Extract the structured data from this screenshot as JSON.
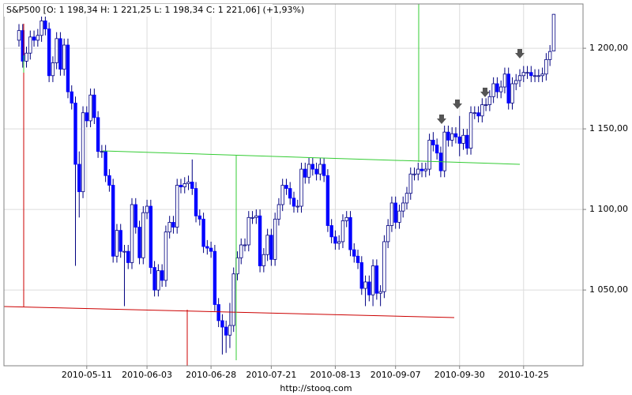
{
  "chart_data": {
    "type": "candlestick",
    "title": "S&P500 [O: 1 198,34  H: 1 221,25  L: 1 198,34  C: 1 221,06] (+1,93%)",
    "footer": "http://stooq.com",
    "up_color": "#ffffff",
    "down_color": "#0000ff",
    "outline_color": "#000080",
    "grid": true,
    "ylim": [
      1003,
      1227.5
    ],
    "yticks": [
      {
        "value": 1050,
        "label": "1 050,00"
      },
      {
        "value": 1100,
        "label": "1 100,00"
      },
      {
        "value": 1150,
        "label": "1 150,00"
      },
      {
        "value": 1200,
        "label": "1 200,00"
      }
    ],
    "categories": [
      null,
      null,
      null,
      null,
      null,
      null,
      null,
      null,
      null,
      null,
      null,
      null,
      null,
      null,
      null,
      null,
      null,
      null,
      "2010-05-11",
      null,
      null,
      null,
      null,
      null,
      null,
      null,
      null,
      null,
      null,
      null,
      null,
      null,
      null,
      null,
      "2010-06-03",
      null,
      null,
      null,
      null,
      null,
      null,
      null,
      null,
      null,
      null,
      null,
      null,
      null,
      null,
      null,
      null,
      "2010-06-28",
      null,
      null,
      null,
      null,
      null,
      null,
      null,
      null,
      null,
      null,
      null,
      null,
      null,
      null,
      null,
      "2010-07-21",
      null,
      null,
      null,
      null,
      null,
      null,
      null,
      null,
      null,
      null,
      null,
      null,
      null,
      null,
      null,
      null,
      "2010-08-13",
      null,
      null,
      null,
      null,
      null,
      null,
      null,
      null,
      null,
      null,
      null,
      null,
      null,
      null,
      null,
      "2010-09-07",
      null,
      null,
      null,
      null,
      null,
      null,
      null,
      null,
      null,
      null,
      null,
      null,
      null,
      null,
      null,
      null,
      "2010-09-30",
      null,
      null,
      null,
      null,
      null,
      null,
      null,
      null,
      null,
      null,
      null,
      null,
      null,
      null,
      null,
      null,
      "2010-10-25",
      null,
      null,
      null,
      null,
      null,
      null,
      null,
      null
    ],
    "open": [
      1205,
      1211,
      1192,
      1197,
      1207,
      1205,
      1208,
      1217,
      1212,
      1183,
      1191,
      1206,
      1187,
      1202,
      1173,
      1166,
      1128,
      1111,
      1160,
      1155,
      1171,
      1157,
      1136,
      1136,
      1121,
      1115,
      1071,
      1087,
      1074,
      1074,
      1067,
      1103,
      1089,
      1070,
      1098,
      1102,
      1064,
      1050,
      1062,
      1056,
      1086,
      1092,
      1089,
      1115,
      1114,
      1116,
      1117,
      1113,
      1096,
      1094,
      1077,
      1076,
      1074,
      1041,
      1031,
      1027,
      1022,
      1028,
      1060,
      1070,
      1078,
      1078,
      1095,
      1095,
      1096,
      1065,
      1072,
      1084,
      1069,
      1094,
      1103,
      1115,
      1113,
      1107,
      1102,
      1102,
      1125,
      1120,
      1128,
      1125,
      1122,
      1128,
      1121,
      1090,
      1083,
      1079,
      1080,
      1093,
      1095,
      1075,
      1071,
      1067,
      1051,
      1055,
      1047,
      1065,
      1048,
      1049,
      1080,
      1090,
      1104,
      1092,
      1099,
      1104,
      1110,
      1122,
      1122,
      1125,
      1124,
      1125,
      1143,
      1140,
      1135,
      1124,
      1148,
      1143,
      1147,
      1145,
      1141,
      1146,
      1138,
      1160,
      1160,
      1158,
      1165,
      1165,
      1170,
      1178,
      1173,
      1176,
      1184,
      1166,
      1178,
      1180,
      1183,
      1185,
      1185,
      1183,
      1183,
      1183,
      1184,
      1193,
      1198.34
    ],
    "high": [
      1215,
      1215,
      1201,
      1211,
      1211,
      1212,
      1221,
      1221,
      1216,
      1195,
      1210,
      1210,
      1206,
      1206,
      1177,
      1170,
      1136,
      1164,
      1164,
      1175,
      1175,
      1161,
      1140,
      1140,
      1125,
      1119,
      1091,
      1091,
      1078,
      1078,
      1107,
      1107,
      1093,
      1102,
      1106,
      1106,
      1068,
      1066,
      1066,
      1090,
      1096,
      1096,
      1119,
      1119,
      1120,
      1121,
      1131,
      1117,
      1100,
      1098,
      1081,
      1080,
      1078,
      1045,
      1035,
      1031,
      1042,
      1064,
      1074,
      1082,
      1082,
      1099,
      1099,
      1100,
      1100,
      1076,
      1088,
      1088,
      1098,
      1107,
      1119,
      1119,
      1117,
      1111,
      1106,
      1129,
      1129,
      1132,
      1132,
      1129,
      1132,
      1132,
      1125,
      1094,
      1087,
      1084,
      1097,
      1099,
      1099,
      1079,
      1075,
      1071,
      1059,
      1059,
      1069,
      1069,
      1053,
      1084,
      1094,
      1108,
      1108,
      1103,
      1108,
      1114,
      1126,
      1126,
      1129,
      1129,
      1129,
      1147,
      1148,
      1144,
      1139,
      1152,
      1152,
      1151,
      1151,
      1158,
      1150,
      1150,
      1164,
      1164,
      1164,
      1169,
      1169,
      1174,
      1182,
      1182,
      1180,
      1188,
      1188,
      1182,
      1184,
      1187,
      1189,
      1189,
      1189,
      1187,
      1187,
      1188,
      1197,
      1202,
      1221.25
    ],
    "low": [
      1201,
      1188,
      1188,
      1193,
      1201,
      1201,
      1204,
      1208,
      1179,
      1179,
      1187,
      1183,
      1183,
      1169,
      1162,
      1065,
      1095,
      1107,
      1151,
      1151,
      1153,
      1132,
      1132,
      1117,
      1111,
      1067,
      1067,
      1070,
      1040,
      1063,
      1063,
      1085,
      1066,
      1066,
      1094,
      1060,
      1046,
      1046,
      1052,
      1052,
      1082,
      1085,
      1085,
      1110,
      1110,
      1112,
      1109,
      1092,
      1090,
      1073,
      1072,
      1070,
      1037,
      1027,
      1010,
      1011,
      1014,
      1024,
      1056,
      1066,
      1074,
      1074,
      1091,
      1091,
      1061,
      1061,
      1068,
      1065,
      1065,
      1090,
      1099,
      1109,
      1103,
      1098,
      1098,
      1098,
      1116,
      1116,
      1121,
      1118,
      1118,
      1117,
      1086,
      1079,
      1075,
      1075,
      1076,
      1089,
      1071,
      1067,
      1063,
      1047,
      1040,
      1043,
      1040,
      1044,
      1040,
      1045,
      1076,
      1086,
      1088,
      1088,
      1095,
      1100,
      1106,
      1118,
      1118,
      1120,
      1120,
      1121,
      1136,
      1131,
      1120,
      1120,
      1139,
      1139,
      1141,
      1133,
      1137,
      1134,
      1134,
      1156,
      1154,
      1154,
      1161,
      1161,
      1166,
      1169,
      1169,
      1172,
      1162,
      1162,
      1174,
      1176,
      1179,
      1181,
      1179,
      1179,
      1179,
      1179,
      1180,
      1189,
      1198.34
    ],
    "close": [
      1211,
      1192,
      1197,
      1207,
      1205,
      1208,
      1217,
      1212,
      1183,
      1191,
      1206,
      1187,
      1202,
      1173,
      1166,
      1128,
      1111,
      1160,
      1155,
      1171,
      1157,
      1136,
      1136,
      1121,
      1115,
      1071,
      1087,
      1074,
      1074,
      1067,
      1103,
      1089,
      1070,
      1098,
      1102,
      1064,
      1050,
      1062,
      1056,
      1086,
      1092,
      1089,
      1115,
      1114,
      1116,
      1117,
      1113,
      1096,
      1094,
      1077,
      1076,
      1074,
      1041,
      1031,
      1027,
      1022,
      1028,
      1060,
      1070,
      1078,
      1078,
      1095,
      1095,
      1096,
      1065,
      1072,
      1084,
      1069,
      1094,
      1103,
      1115,
      1113,
      1107,
      1102,
      1102,
      1125,
      1120,
      1128,
      1125,
      1122,
      1128,
      1121,
      1090,
      1083,
      1079,
      1080,
      1093,
      1095,
      1075,
      1071,
      1067,
      1051,
      1055,
      1047,
      1065,
      1048,
      1049,
      1080,
      1090,
      1104,
      1092,
      1099,
      1104,
      1110,
      1122,
      1122,
      1125,
      1124,
      1125,
      1143,
      1140,
      1135,
      1124,
      1148,
      1143,
      1147,
      1145,
      1141,
      1146,
      1138,
      1160,
      1160,
      1158,
      1165,
      1165,
      1170,
      1178,
      1173,
      1176,
      1184,
      1166,
      1178,
      1180,
      1183,
      1185,
      1185,
      1183,
      1183,
      1183,
      1184,
      1193,
      1198,
      1221.06
    ]
  }
}
